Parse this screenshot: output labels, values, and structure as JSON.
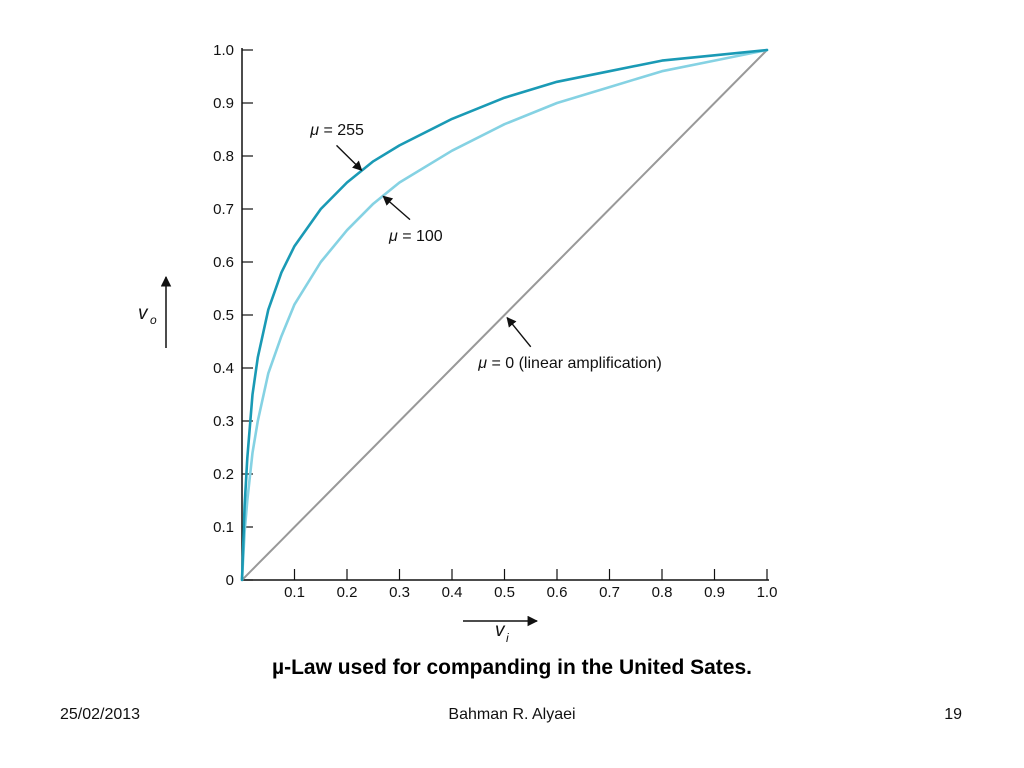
{
  "caption": "µ-Law used for companding in the United Sates.",
  "footer": {
    "date": "25/02/2013",
    "author": "Bahman R. Alyaei",
    "page": "19"
  },
  "chart_data": {
    "type": "line",
    "title": "",
    "xlabel": "v",
    "xlabel_sub": "i",
    "ylabel": "v",
    "ylabel_sub": "o",
    "xlim": [
      0,
      1
    ],
    "ylim": [
      0,
      1
    ],
    "x_ticks": [
      "0.1",
      "0.2",
      "0.3",
      "0.4",
      "0.5",
      "0.6",
      "0.7",
      "0.8",
      "0.9",
      "1.0"
    ],
    "y_ticks": [
      "0",
      "0.1",
      "0.2",
      "0.3",
      "0.4",
      "0.5",
      "0.6",
      "0.7",
      "0.8",
      "0.9",
      "1.0"
    ],
    "grid": false,
    "x": [
      0,
      0.005,
      0.01,
      0.02,
      0.03,
      0.05,
      0.075,
      0.1,
      0.15,
      0.2,
      0.25,
      0.3,
      0.4,
      0.5,
      0.6,
      0.7,
      0.8,
      0.9,
      1.0
    ],
    "series": [
      {
        "name": "μ = 255",
        "color": "#1a9ab5",
        "values": [
          0,
          0.14,
          0.23,
          0.35,
          0.42,
          0.51,
          0.58,
          0.63,
          0.7,
          0.75,
          0.79,
          0.82,
          0.87,
          0.91,
          0.94,
          0.96,
          0.98,
          0.99,
          1.0
        ]
      },
      {
        "name": "μ = 100",
        "color": "#85d2e3",
        "values": [
          0,
          0.09,
          0.15,
          0.24,
          0.3,
          0.39,
          0.46,
          0.52,
          0.6,
          0.66,
          0.71,
          0.75,
          0.81,
          0.86,
          0.9,
          0.93,
          0.96,
          0.98,
          1.0
        ]
      },
      {
        "name": "μ = 0 (linear amplification)",
        "color": "#999999",
        "values": [
          0,
          0.005,
          0.01,
          0.02,
          0.03,
          0.05,
          0.075,
          0.1,
          0.15,
          0.2,
          0.25,
          0.3,
          0.4,
          0.5,
          0.6,
          0.7,
          0.8,
          0.9,
          1.0
        ]
      }
    ],
    "annotations": [
      {
        "text_prefix": "μ",
        "text": "= 255",
        "label_at": [
          0.13,
          0.84
        ],
        "arrow_from": [
          0.18,
          0.82
        ],
        "arrow_to": [
          0.228,
          0.773
        ]
      },
      {
        "text_prefix": "μ",
        "text": "= 100",
        "label_at": [
          0.28,
          0.64
        ],
        "arrow_from": [
          0.32,
          0.68
        ],
        "arrow_to": [
          0.269,
          0.724
        ]
      },
      {
        "text_prefix": "μ",
        "text": "= 0 (linear amplification)",
        "label_at": [
          0.45,
          0.4
        ],
        "arrow_from": [
          0.55,
          0.44
        ],
        "arrow_to": [
          0.505,
          0.495
        ]
      }
    ]
  }
}
